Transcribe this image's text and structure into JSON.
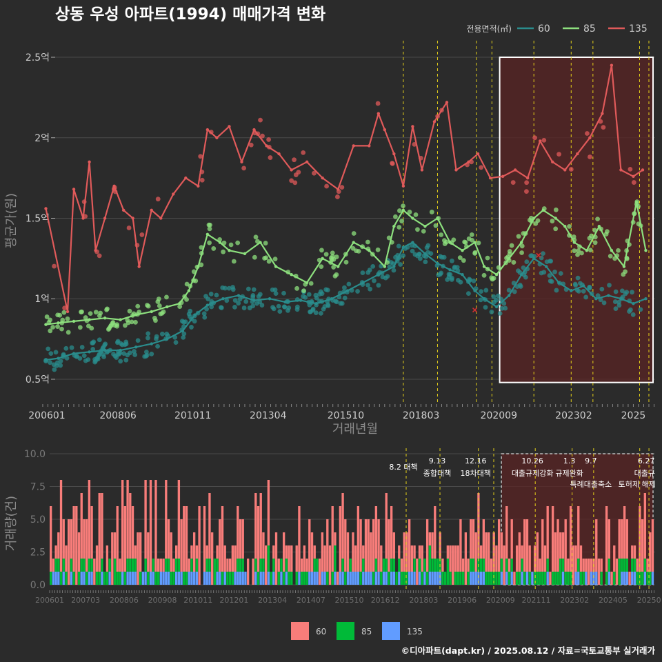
{
  "title": "상동 우성 아파트(1994) 매매가격 변화",
  "footer": "©디아파트(dapt.kr) / 2025.08.12 / 자료=국토교통부 실거래가",
  "colors": {
    "background": "#2b2b2b",
    "grid": "#4a4a4a",
    "tick_text": "#cfcfcf",
    "axis_title": "#8a8a8a",
    "policy_line": "#e6d21a",
    "highlight_fill": "#5a2424",
    "highlight_border": "#ffffff"
  },
  "chart_data": [
    {
      "type": "line",
      "ylabel": "평균가(원)",
      "xlabel": "거래년월",
      "legend_title": "전용면적(㎡)",
      "legend_position": "top-right",
      "x_range": [
        2006.4,
        2025.7
      ],
      "ylim": [
        0.35,
        2.62
      ],
      "y_ticks": [
        {
          "v": 0.5,
          "label": "0.5억"
        },
        {
          "v": 1.0,
          "label": "1억"
        },
        {
          "v": 1.5,
          "label": "1.5억"
        },
        {
          "v": 2.0,
          "label": "2억"
        },
        {
          "v": 2.5,
          "label": "2.5억"
        }
      ],
      "x_ticks": [
        {
          "v": 2006.0,
          "label": "200601"
        },
        {
          "v": 2008.42,
          "label": "200806"
        },
        {
          "v": 2010.83,
          "label": "201011"
        },
        {
          "v": 2013.25,
          "label": "201304"
        },
        {
          "v": 2015.75,
          "label": "201510"
        },
        {
          "v": 2018.17,
          "label": "201803"
        },
        {
          "v": 2020.67,
          "label": "202009"
        },
        {
          "v": 2023.08,
          "label": "202302"
        },
        {
          "v": 2025.0,
          "label": "2025"
        }
      ],
      "highlight_range": {
        "x": [
          2020.7,
          2025.7
        ],
        "y": [
          0.48,
          2.5
        ]
      },
      "series": [
        {
          "name": "60",
          "color": "#2a8c8c",
          "x": [
            2006.1,
            2006.5,
            2007.0,
            2007.5,
            2008.0,
            2008.5,
            2009.0,
            2009.5,
            2010.0,
            2010.5,
            2010.9,
            2011.3,
            2011.8,
            2012.3,
            2012.8,
            2013.3,
            2013.8,
            2014.3,
            2014.8,
            2015.3,
            2015.8,
            2016.3,
            2016.8,
            2017.3,
            2017.6,
            2017.9,
            2018.3,
            2018.7,
            2019.1,
            2019.5,
            2019.9,
            2020.2,
            2020.6,
            2021.0,
            2021.4,
            2021.8,
            2022.2,
            2022.6,
            2023.0,
            2023.4,
            2023.8,
            2024.2,
            2024.6,
            2025.0,
            2025.4
          ],
          "y": [
            0.62,
            0.63,
            0.66,
            0.67,
            0.68,
            0.68,
            0.7,
            0.72,
            0.75,
            0.8,
            0.9,
            0.96,
            1.0,
            1.02,
            0.99,
            1.0,
            0.98,
            0.99,
            0.97,
            1.0,
            1.05,
            1.1,
            1.15,
            1.2,
            1.32,
            1.35,
            1.28,
            1.22,
            1.18,
            1.15,
            1.05,
            1.0,
            0.95,
            1.02,
            1.15,
            1.25,
            1.2,
            1.1,
            1.05,
            1.08,
            1.0,
            1.02,
            1.0,
            0.97,
            1.0
          ]
        },
        {
          "name": "85",
          "color": "#8de07e",
          "x": [
            2006.1,
            2006.5,
            2007.0,
            2007.5,
            2008.0,
            2008.5,
            2009.0,
            2009.5,
            2010.0,
            2010.4,
            2010.7,
            2011.0,
            2011.3,
            2011.7,
            2012.0,
            2012.5,
            2013.0,
            2013.5,
            2014.0,
            2014.5,
            2015.0,
            2015.5,
            2016.0,
            2016.5,
            2017.0,
            2017.3,
            2017.6,
            2017.9,
            2018.3,
            2018.7,
            2019.1,
            2019.5,
            2019.9,
            2020.2,
            2020.6,
            2021.0,
            2021.4,
            2021.8,
            2022.1,
            2022.5,
            2022.8,
            2023.1,
            2023.5,
            2023.9,
            2024.3,
            2024.7,
            2025.1,
            2025.4
          ],
          "y": [
            0.84,
            0.85,
            0.86,
            0.87,
            0.88,
            0.87,
            0.9,
            0.92,
            0.95,
            0.97,
            1.05,
            1.2,
            1.4,
            1.35,
            1.3,
            1.28,
            1.35,
            1.2,
            1.15,
            1.1,
            1.25,
            1.2,
            1.35,
            1.3,
            1.2,
            1.45,
            1.55,
            1.5,
            1.45,
            1.5,
            1.35,
            1.3,
            1.35,
            1.2,
            1.15,
            1.25,
            1.35,
            1.5,
            1.55,
            1.5,
            1.45,
            1.35,
            1.3,
            1.45,
            1.3,
            1.2,
            1.6,
            1.3
          ]
        },
        {
          "name": "135",
          "color": "#e05a5a",
          "x": [
            2006.1,
            2006.8,
            2007.0,
            2007.3,
            2007.5,
            2007.7,
            2008.0,
            2008.3,
            2008.6,
            2008.9,
            2009.1,
            2009.5,
            2009.8,
            2010.2,
            2010.6,
            2011.0,
            2011.3,
            2011.6,
            2012.0,
            2012.4,
            2012.8,
            2013.2,
            2013.6,
            2014.0,
            2014.5,
            2015.0,
            2015.5,
            2016.0,
            2016.5,
            2016.8,
            2017.0,
            2017.3,
            2017.6,
            2017.9,
            2018.2,
            2018.6,
            2019.0,
            2019.3,
            2019.7,
            2020.0,
            2020.4,
            2020.8,
            2021.2,
            2021.6,
            2022.0,
            2022.4,
            2022.8,
            2023.2,
            2023.6,
            2024.0,
            2024.3,
            2024.6,
            2025.0,
            2025.3
          ],
          "y": [
            1.56,
            0.92,
            1.68,
            1.5,
            1.85,
            1.3,
            1.5,
            1.7,
            1.55,
            1.5,
            1.2,
            1.55,
            1.5,
            1.65,
            1.75,
            1.7,
            2.05,
            2.0,
            2.07,
            1.85,
            2.05,
            1.95,
            1.9,
            1.8,
            1.85,
            1.75,
            1.68,
            1.95,
            1.95,
            2.15,
            2.05,
            1.9,
            1.7,
            2.07,
            1.8,
            2.1,
            2.22,
            1.8,
            1.85,
            1.9,
            1.75,
            1.76,
            1.8,
            1.75,
            1.98,
            1.85,
            1.8,
            1.9,
            2.0,
            2.15,
            2.45,
            1.8,
            1.76,
            1.8
          ]
        }
      ],
      "scatter_note": "",
      "marker_x": [
        {
          "x": 2019.9,
          "y": 0.93,
          "color": "#d03030"
        },
        {
          "x": 2021.95,
          "y": 1.27,
          "color": "#d03030"
        }
      ]
    },
    {
      "type": "bar",
      "ylabel": "거래량(건)",
      "ylim": [
        0,
        10
      ],
      "y_ticks": [
        {
          "v": 0.0,
          "label": "0.0"
        },
        {
          "v": 2.5,
          "label": "2.5"
        },
        {
          "v": 5.0,
          "label": "5.0"
        },
        {
          "v": 7.5,
          "label": "7.5"
        },
        {
          "v": 10.0,
          "label": "10.0"
        }
      ],
      "x_ticks": [
        {
          "v": 2006.0,
          "label": "200601"
        },
        {
          "v": 2007.17,
          "label": "200703"
        },
        {
          "v": 2008.42,
          "label": "200806"
        },
        {
          "v": 2009.67,
          "label": "200908"
        },
        {
          "v": 2010.83,
          "label": "201011"
        },
        {
          "v": 2012.0,
          "label": "201201"
        },
        {
          "v": 2013.25,
          "label": "201304"
        },
        {
          "v": 2014.5,
          "label": "201407"
        },
        {
          "v": 2015.75,
          "label": "201510"
        },
        {
          "v": 2016.92,
          "label": "201612"
        },
        {
          "v": 2018.17,
          "label": "201803"
        },
        {
          "v": 2019.42,
          "label": "201906"
        },
        {
          "v": 2020.67,
          "label": "202009"
        },
        {
          "v": 2021.83,
          "label": "202111"
        },
        {
          "v": 2023.08,
          "label": "202302"
        },
        {
          "v": 2024.33,
          "label": "202405"
        },
        {
          "v": 2025.5,
          "label": "20250"
        }
      ],
      "legend_position": "bottom",
      "series_colors": {
        "60": "#f87d7a",
        "85": "#00ba38",
        "135": "#619cff"
      },
      "highlight_range": [
        2020.7,
        2025.7
      ],
      "policies": [
        {
          "x": 2017.6,
          "date": "",
          "label": "8.2 대책"
        },
        {
          "x": 2018.7,
          "date": "9.13",
          "label": "종합대책"
        },
        {
          "x": 2019.95,
          "date": "12.16",
          "label": "18차대책"
        },
        {
          "x": 2020.45,
          "date": "",
          "label": ""
        },
        {
          "x": 2021.8,
          "date": "10.26",
          "label": "대출규제강화"
        },
        {
          "x": 2023.0,
          "date": "1.3",
          "label": "규제완화"
        },
        {
          "x": 2023.7,
          "date": "9.7",
          "label": "특례대출축소"
        },
        {
          "x": 2025.2,
          "date": "",
          "label": "토허제 해제"
        },
        {
          "x": 2025.5,
          "date": "6.27",
          "label": "대출규"
        }
      ]
    }
  ],
  "legend_bottom": [
    {
      "name": "60",
      "color": "#f87d7a"
    },
    {
      "name": "85",
      "color": "#00ba38"
    },
    {
      "name": "135",
      "color": "#619cff"
    }
  ]
}
